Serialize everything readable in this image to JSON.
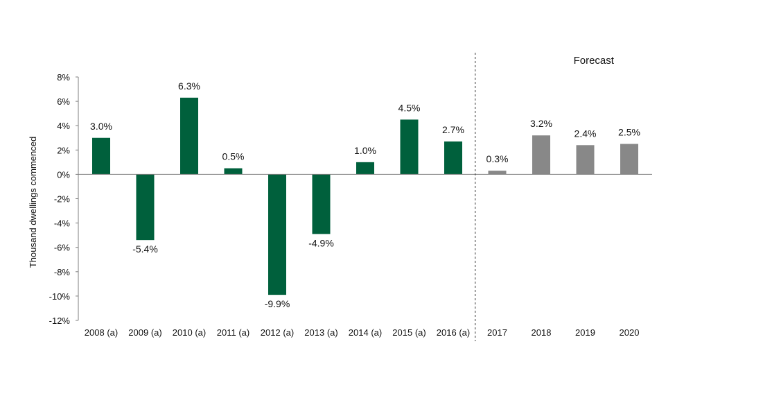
{
  "chart_data": {
    "type": "bar",
    "title": "",
    "xlabel": "",
    "ylabel": "Thousand dwellings commenced",
    "ylim": [
      -12,
      8
    ],
    "y_ticks": [
      "8%",
      "6%",
      "4%",
      "2%",
      "0%",
      "-2%",
      "-4%",
      "-6%",
      "-8%",
      "-10%",
      "-12%"
    ],
    "categories": [
      "2008 (a)",
      "2009 (a)",
      "2010 (a)",
      "2011 (a)",
      "2012 (a)",
      "2013 (a)",
      "2014 (a)",
      "2015 (a)",
      "2016 (a)",
      "2017",
      "2018",
      "2019",
      "2020"
    ],
    "values": [
      3.0,
      -5.4,
      6.3,
      0.5,
      -9.9,
      -4.9,
      1.0,
      4.5,
      2.7,
      0.3,
      3.2,
      2.4,
      2.5
    ],
    "value_labels": [
      "3.0%",
      "-5.4%",
      "6.3%",
      "0.5%",
      "-9.9%",
      "-4.9%",
      "1.0%",
      "4.5%",
      "2.7%",
      "0.3%",
      "3.2%",
      "2.4%",
      "2.5%"
    ],
    "forecast_label": "Forecast",
    "forecast_start_index": 9,
    "grid": false,
    "colors": {
      "actual": "#00603c",
      "forecast": "#888888"
    }
  }
}
